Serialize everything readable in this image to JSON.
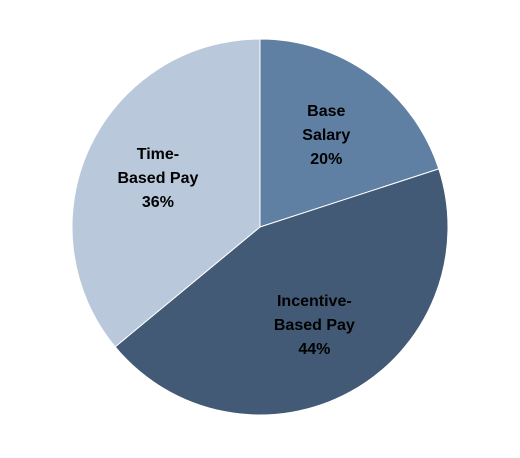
{
  "chart_data": {
    "type": "pie",
    "categories": [
      "Base Salary",
      "Incentive-Based Pay",
      "Time-Based Pay"
    ],
    "values": [
      20,
      44,
      36
    ],
    "value_labels": [
      "20%",
      "44%",
      "36%"
    ],
    "colors": [
      "#5f7fa3",
      "#425a75",
      "#b9c9db"
    ]
  }
}
